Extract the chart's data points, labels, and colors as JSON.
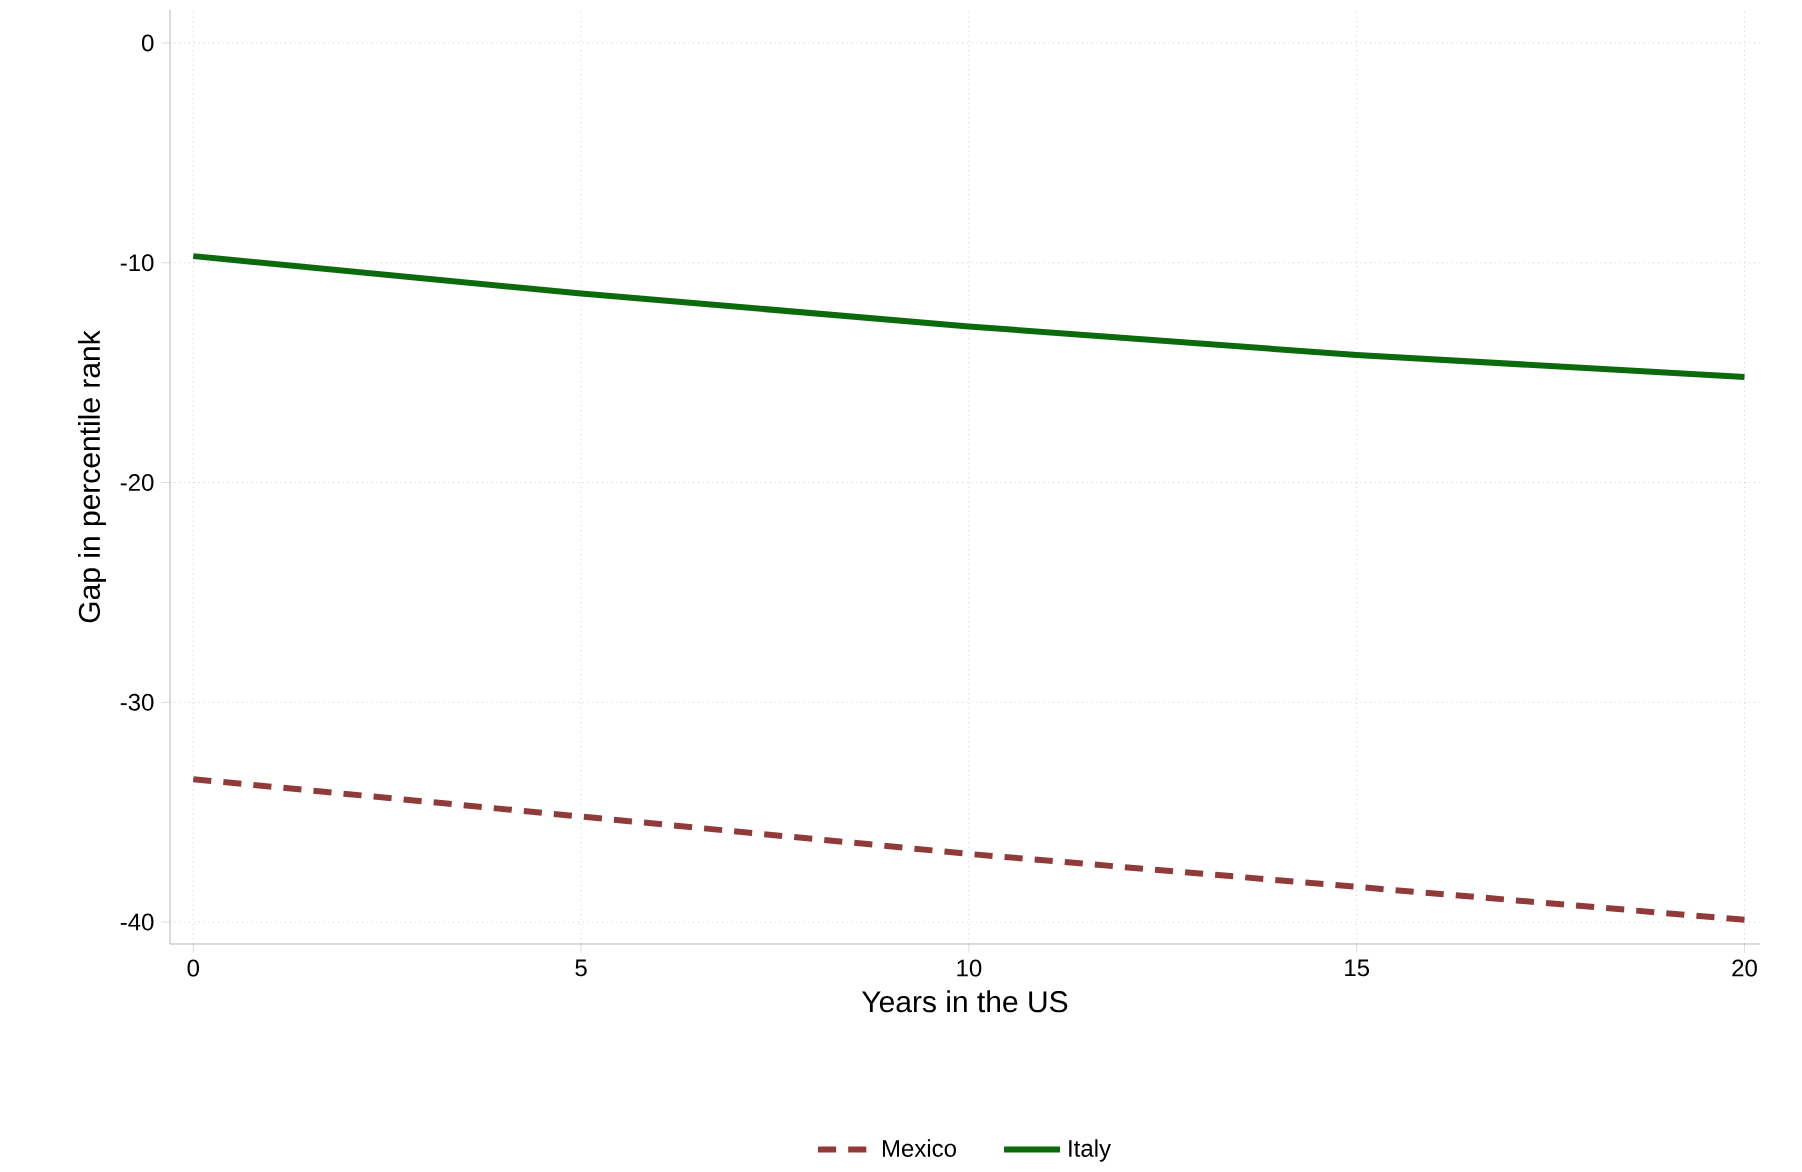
{
  "chart_data": {
    "type": "line",
    "xlabel": "Years in the US",
    "ylabel": "Gap in percentile rank",
    "x": [
      0,
      5,
      10,
      15,
      20
    ],
    "series": [
      {
        "name": "Mexico",
        "color": "#903a3a",
        "line_style": "dashed",
        "values": [
          -33.5,
          -35.2,
          -36.9,
          -38.4,
          -39.9
        ]
      },
      {
        "name": "Italy",
        "color": "#0b6a0b",
        "line_style": "solid",
        "values": [
          -9.7,
          -11.4,
          -12.9,
          -14.2,
          -15.2
        ]
      }
    ],
    "xlim": [
      -0.3,
      20.2
    ],
    "ylim": [
      -41,
      1.5
    ],
    "xticks": [
      0,
      5,
      10,
      15,
      20
    ],
    "yticks": [
      0,
      -10,
      -20,
      -30,
      -40
    ],
    "grid": true,
    "legend": "bottom",
    "marker": "none"
  }
}
